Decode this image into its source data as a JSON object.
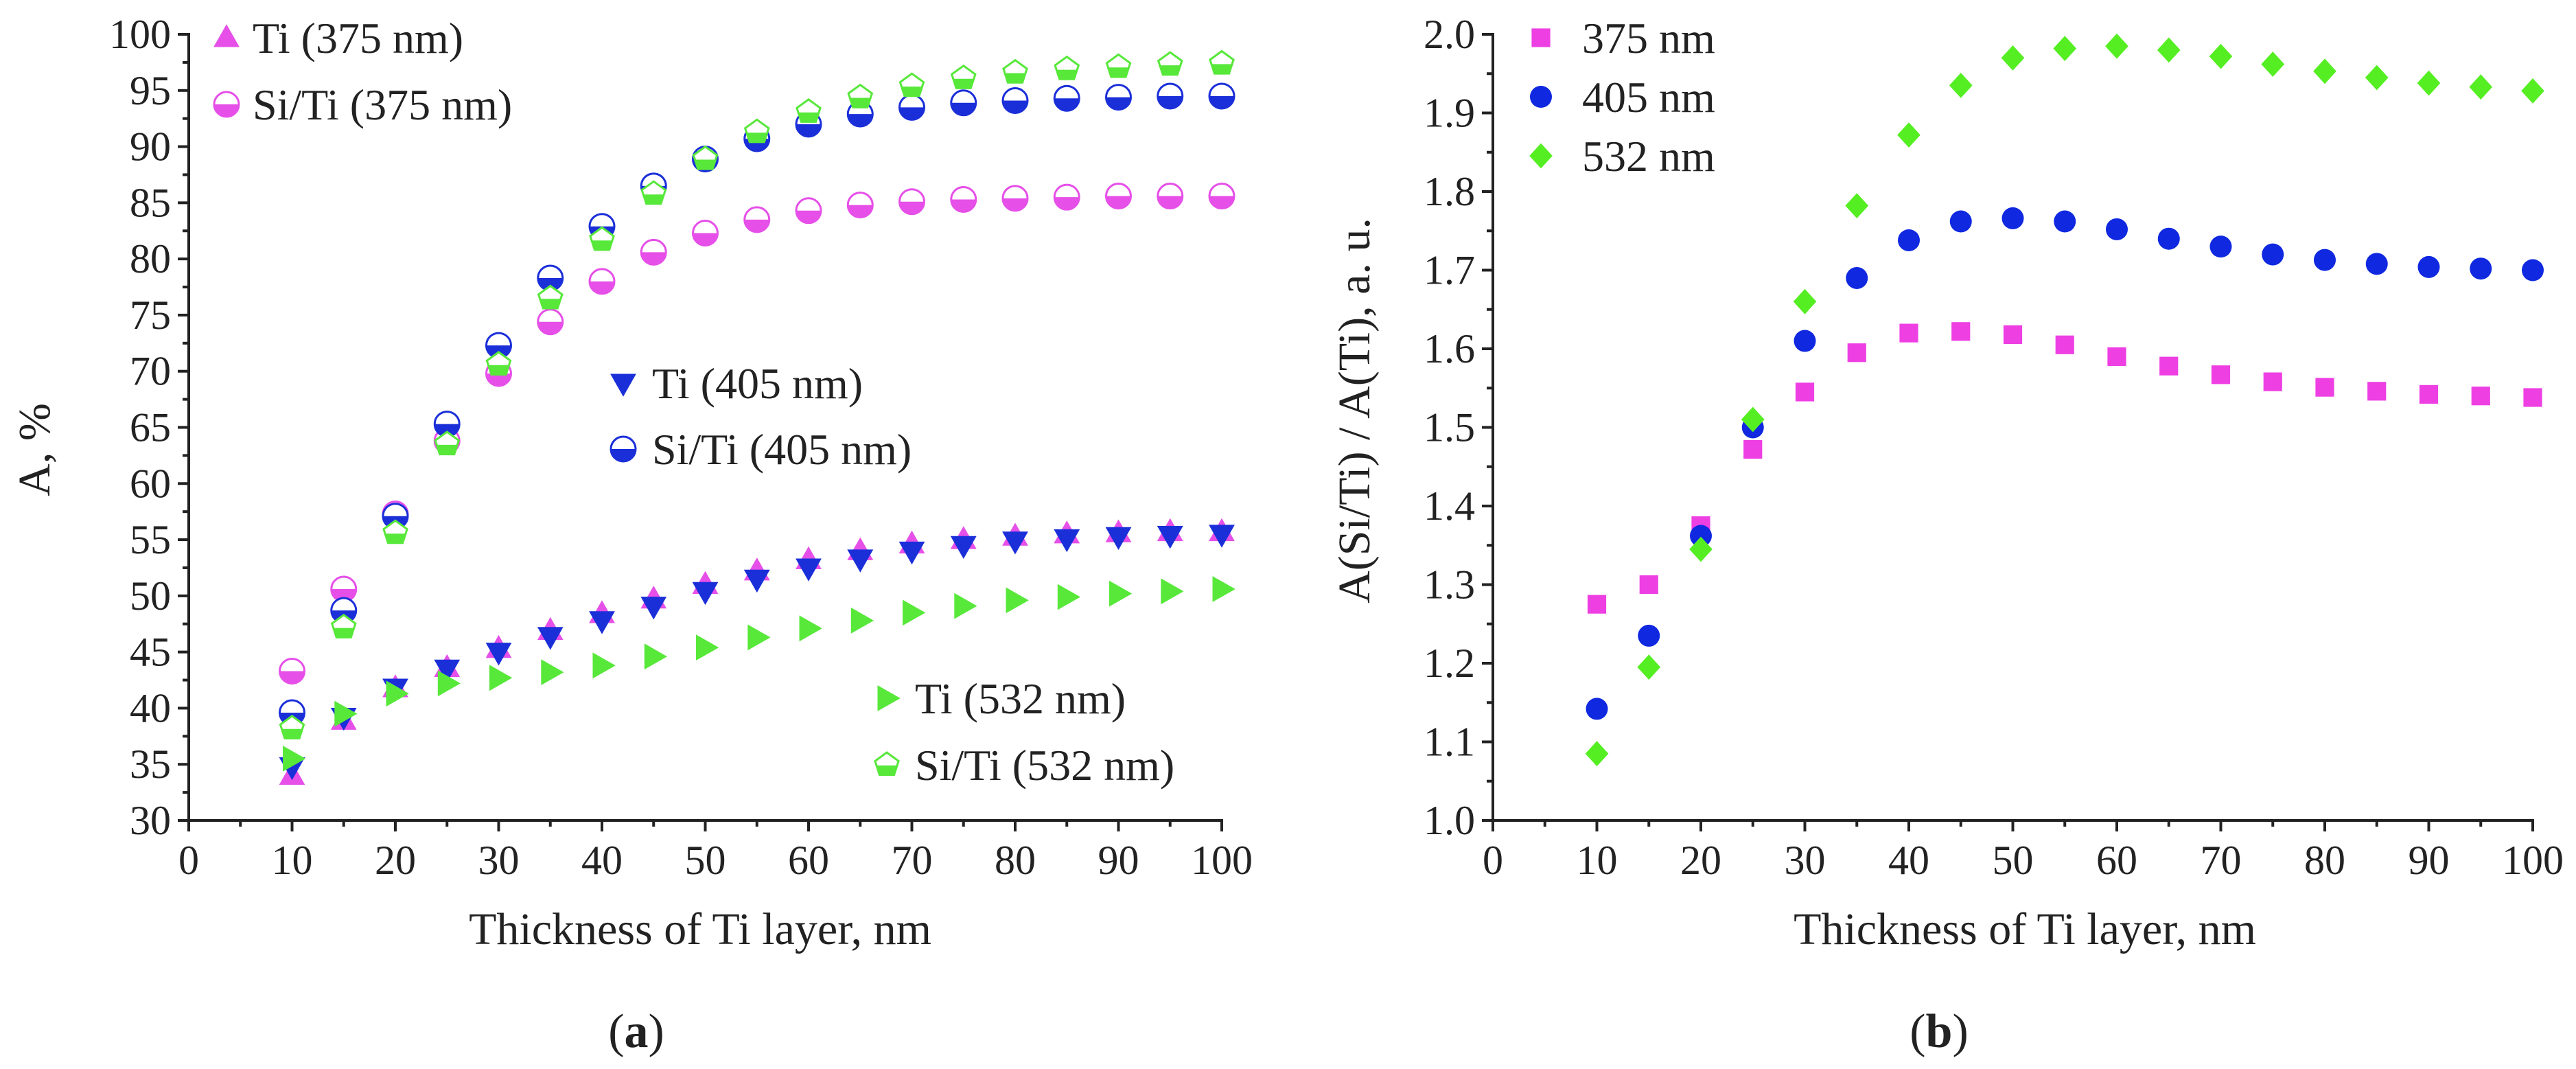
{
  "chart_data": [
    {
      "panel": "a",
      "type": "scatter",
      "title": "",
      "xlabel": "Thickness of Ti layer, nm",
      "ylabel": "A, %",
      "xlim": [
        0,
        100
      ],
      "ylim": [
        30,
        100
      ],
      "x_ticks": [
        "0",
        "10",
        "20",
        "30",
        "40",
        "50",
        "60",
        "70",
        "80",
        "90",
        "100"
      ],
      "y_ticks": [
        "30",
        "35",
        "40",
        "45",
        "50",
        "55",
        "60",
        "65",
        "70",
        "75",
        "80",
        "85",
        "90",
        "95",
        "100"
      ],
      "grid": false,
      "x": [
        10,
        15,
        20,
        25,
        30,
        35,
        40,
        45,
        50,
        55,
        60,
        65,
        70,
        75,
        80,
        85,
        90,
        95,
        100
      ],
      "series": [
        {
          "name": "Ti (375 nm)",
          "marker": "triangle-up",
          "color": "#e64fe8",
          "values": [
            34,
            38.9,
            41.8,
            43.6,
            45.3,
            46.9,
            48.4,
            49.7,
            51,
            52.2,
            53.2,
            54,
            54.6,
            55,
            55.3,
            55.5,
            55.6,
            55.7,
            55.7
          ]
        },
        {
          "name": "Si/Ti (375 nm)",
          "marker": "half-circle",
          "color": "#e64fe8",
          "values": [
            43.3,
            50.6,
            57.3,
            63.8,
            69.8,
            74.4,
            78,
            80.6,
            82.3,
            83.5,
            84.3,
            84.8,
            85.1,
            85.3,
            85.4,
            85.5,
            85.6,
            85.6,
            85.6
          ]
        },
        {
          "name": "Ti (405 nm)",
          "marker": "triangle-down",
          "color": "#1b2fd9",
          "values": [
            34.8,
            39.2,
            41.8,
            43.5,
            45,
            46.4,
            47.8,
            49.1,
            50.4,
            51.5,
            52.5,
            53.3,
            54,
            54.5,
            54.9,
            55.1,
            55.3,
            55.4,
            55.5
          ]
        },
        {
          "name": "Si/Ti (405 nm)",
          "marker": "half-circle",
          "color": "#1b2fd9",
          "values": [
            39.6,
            48.7,
            57.1,
            65.3,
            72.3,
            78.3,
            82.9,
            86.5,
            88.9,
            90.7,
            92,
            92.9,
            93.5,
            93.9,
            94.1,
            94.3,
            94.4,
            94.5,
            94.5
          ]
        },
        {
          "name": "Ti (532 nm)",
          "marker": "triangle-right",
          "color": "#57e83a",
          "values": [
            35.5,
            39.5,
            41.3,
            42.2,
            42.7,
            43.2,
            43.8,
            44.6,
            45.4,
            46.3,
            47.1,
            47.8,
            48.5,
            49.1,
            49.6,
            49.9,
            50.2,
            50.4,
            50.6
          ]
        },
        {
          "name": "Si/Ti (532 nm)",
          "marker": "half-pentagon",
          "color": "#57e83a",
          "values": [
            38.2,
            47.2,
            55.6,
            63.5,
            70.6,
            76.5,
            81.7,
            85.8,
            88.9,
            91.3,
            93.1,
            94.4,
            95.4,
            96.1,
            96.6,
            96.9,
            97.1,
            97.3,
            97.4
          ]
        }
      ],
      "legend": [
        {
          "label": "Ti (375 nm)",
          "series": 0
        },
        {
          "label": "Si/Ti (375 nm)",
          "series": 1
        },
        {
          "label": "Ti (405 nm)",
          "series": 2
        },
        {
          "label": "Si/Ti (405 nm)",
          "series": 3
        },
        {
          "label": "Ti (532 nm)",
          "series": 4
        },
        {
          "label": "Si/Ti (532 nm)",
          "series": 5
        }
      ],
      "panel_label": {
        "open": "(",
        "letter": "a",
        "close": ")"
      }
    },
    {
      "panel": "b",
      "type": "scatter",
      "title": "",
      "xlabel": "Thickness of Ti layer, nm",
      "ylabel": "A(Si/Ti) / A(Ti), a. u.",
      "xlim": [
        0,
        100
      ],
      "ylim": [
        1.0,
        2.0
      ],
      "x_ticks": [
        "0",
        "10",
        "20",
        "30",
        "40",
        "50",
        "60",
        "70",
        "80",
        "90",
        "100"
      ],
      "y_ticks": [
        "1.0",
        "1.1",
        "1.2",
        "1.3",
        "1.4",
        "1.5",
        "1.6",
        "1.7",
        "1.8",
        "1.9",
        "2.0"
      ],
      "grid": false,
      "x": [
        10,
        15,
        20,
        25,
        30,
        35,
        40,
        45,
        50,
        55,
        60,
        65,
        70,
        75,
        80,
        85,
        90,
        95,
        100
      ],
      "series": [
        {
          "name": "375 nm",
          "marker": "square",
          "color": "#ee3fe3",
          "values": [
            1.275,
            1.3,
            1.375,
            1.472,
            1.545,
            1.595,
            1.62,
            1.622,
            1.618,
            1.605,
            1.59,
            1.578,
            1.567,
            1.558,
            1.551,
            1.546,
            1.542,
            1.54,
            1.538
          ]
        },
        {
          "name": "405 nm",
          "marker": "circle",
          "color": "#0f28e0",
          "values": [
            1.142,
            1.235,
            1.362,
            1.5,
            1.61,
            1.69,
            1.738,
            1.762,
            1.766,
            1.762,
            1.752,
            1.74,
            1.73,
            1.72,
            1.713,
            1.708,
            1.704,
            1.702,
            1.7
          ]
        },
        {
          "name": "532 nm",
          "marker": "diamond",
          "color": "#55ee22",
          "values": [
            1.085,
            1.195,
            1.345,
            1.51,
            1.66,
            1.782,
            1.872,
            1.935,
            1.97,
            1.982,
            1.985,
            1.98,
            1.972,
            1.962,
            1.953,
            1.945,
            1.938,
            1.933,
            1.928
          ]
        }
      ],
      "legend": [
        {
          "label": "375 nm",
          "series": 0
        },
        {
          "label": "405 nm",
          "series": 1
        },
        {
          "label": "532 nm",
          "series": 2
        }
      ],
      "panel_label": {
        "open": "(",
        "letter": "b",
        "close": ")"
      }
    }
  ]
}
